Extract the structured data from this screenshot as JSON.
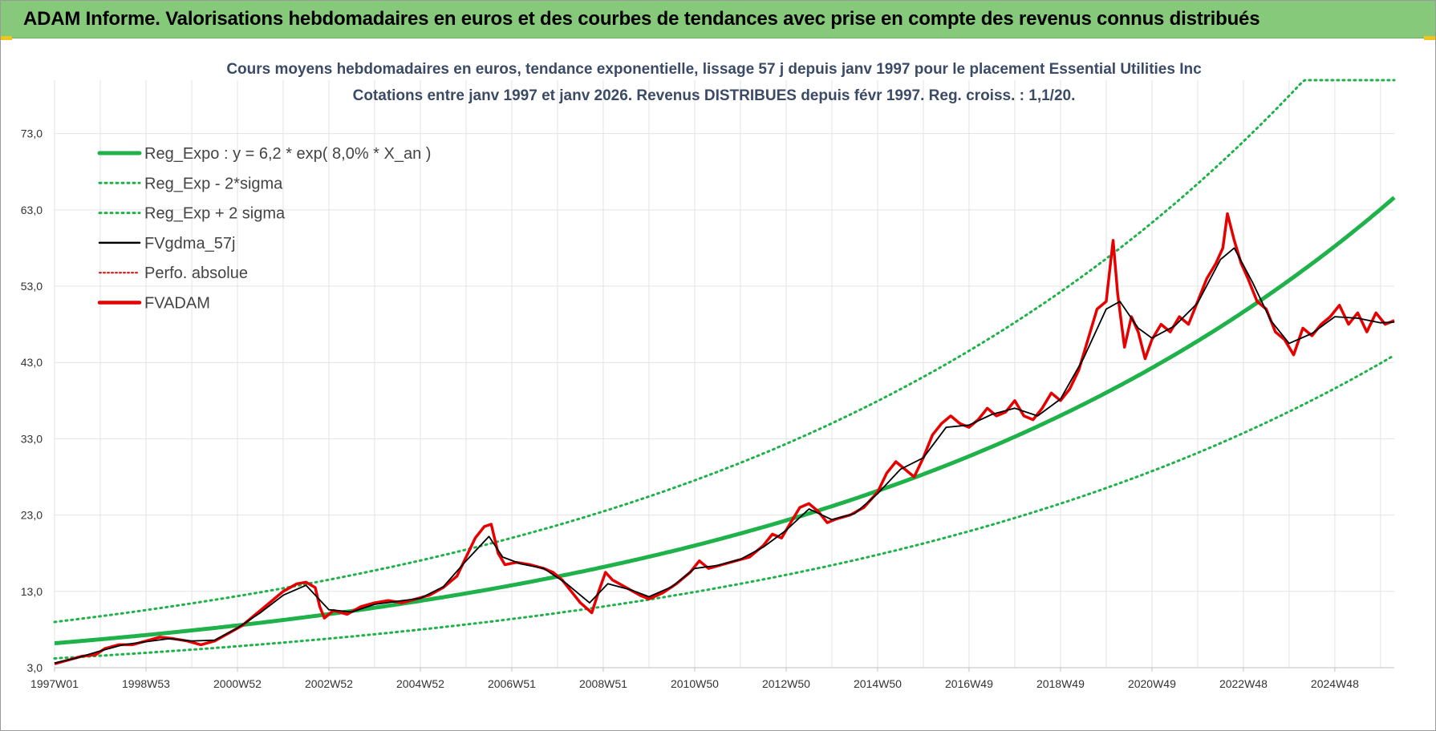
{
  "banner": {
    "title": "ADAM Informe. Valorisations hebdomadaires en euros et des courbes de tendances avec prise en compte des revenus connus distribués"
  },
  "colors": {
    "banner": "#86c97a",
    "trend": "#1fb14a",
    "bands": "#1fb14a",
    "smooth": "#000000",
    "fvadam": "#e60000",
    "perfo": "#e60000"
  },
  "chart_data": {
    "type": "line",
    "title_line1": "Cours moyens hebdomadaires en euros, tendance exponentielle, lissage 57 j depuis janv 1997 pour le placement Essential Utilities Inc",
    "title_line2": "Cotations entre janv 1997 et janv 2026. Revenus DISTRIBUES depuis févr 1997. Reg. croiss. : 1,1/20.",
    "y_ticks": [
      "3,0",
      "13,0",
      "23,0",
      "33,0",
      "43,0",
      "53,0",
      "63,0",
      "73,0"
    ],
    "ylim": [
      3,
      80
    ],
    "x_ticks": [
      {
        "label": "1997W01",
        "t": 1997.0
      },
      {
        "label": "1998W53",
        "t": 1999.0
      },
      {
        "label": "2000W52",
        "t": 2001.0
      },
      {
        "label": "2002W52",
        "t": 2003.0
      },
      {
        "label": "2004W52",
        "t": 2005.0
      },
      {
        "label": "2006W51",
        "t": 2007.0
      },
      {
        "label": "2008W51",
        "t": 2009.0
      },
      {
        "label": "2010W50",
        "t": 2011.0
      },
      {
        "label": "2012W50",
        "t": 2013.0
      },
      {
        "label": "2014W50",
        "t": 2015.0
      },
      {
        "label": "2016W49",
        "t": 2017.0
      },
      {
        "label": "2018W49",
        "t": 2019.0
      },
      {
        "label": "2020W49",
        "t": 2021.0
      },
      {
        "label": "2022W48",
        "t": 2023.0
      },
      {
        "label": "2024W48",
        "t": 2025.0
      }
    ],
    "xlim": [
      1997.0,
      2026.3
    ],
    "grid": true,
    "legend": {
      "placement": "top-left",
      "entries": [
        {
          "label": "Reg_Expo : y = 6,2 * exp( 8,0% *  X_an )",
          "style": "solid-thick",
          "color": "#1fb14a"
        },
        {
          "label": "Reg_Exp - 2*sigma",
          "style": "dotted",
          "color": "#1fb14a"
        },
        {
          "label": "Reg_Exp + 2 sigma",
          "style": "dotted",
          "color": "#1fb14a"
        },
        {
          "label": "FVgdma_57j",
          "style": "solid",
          "color": "#000000"
        },
        {
          "label": "Perfo. absolue",
          "style": "dotted-thin",
          "color": "#e60000"
        },
        {
          "label": "FVADAM",
          "style": "solid-thick",
          "color": "#e60000"
        }
      ]
    },
    "trend": {
      "a": 6.2,
      "rate": 0.08,
      "lower_factor": 0.68,
      "upper_factor": 1.45,
      "upper_cap": 80
    },
    "series": [
      {
        "name": "FVADAM",
        "points": [
          [
            1997.0,
            3.5
          ],
          [
            1997.3,
            4.0
          ],
          [
            1997.6,
            4.5
          ],
          [
            1997.9,
            4.7
          ],
          [
            1998.1,
            5.5
          ],
          [
            1998.4,
            6.0
          ],
          [
            1998.7,
            6.0
          ],
          [
            1999.0,
            6.5
          ],
          [
            1999.3,
            7.0
          ],
          [
            1999.6,
            6.8
          ],
          [
            1999.9,
            6.5
          ],
          [
            2000.2,
            6.0
          ],
          [
            2000.5,
            6.5
          ],
          [
            2000.8,
            7.5
          ],
          [
            2001.1,
            8.5
          ],
          [
            2001.4,
            10.0
          ],
          [
            2001.7,
            11.5
          ],
          [
            2002.0,
            13.0
          ],
          [
            2002.3,
            14.0
          ],
          [
            2002.5,
            14.2
          ],
          [
            2002.7,
            13.5
          ],
          [
            2002.8,
            11.0
          ],
          [
            2002.9,
            9.5
          ],
          [
            2003.1,
            10.5
          ],
          [
            2003.4,
            10.0
          ],
          [
            2003.7,
            11.0
          ],
          [
            2004.0,
            11.5
          ],
          [
            2004.3,
            11.8
          ],
          [
            2004.6,
            11.5
          ],
          [
            2004.9,
            12.0
          ],
          [
            2005.2,
            12.5
          ],
          [
            2005.5,
            13.5
          ],
          [
            2005.8,
            15.0
          ],
          [
            2006.0,
            17.5
          ],
          [
            2006.2,
            20.0
          ],
          [
            2006.4,
            21.5
          ],
          [
            2006.55,
            21.8
          ],
          [
            2006.7,
            18.0
          ],
          [
            2006.85,
            16.5
          ],
          [
            2007.1,
            16.8
          ],
          [
            2007.4,
            16.5
          ],
          [
            2007.7,
            16.0
          ],
          [
            2007.9,
            15.5
          ],
          [
            2008.1,
            14.5
          ],
          [
            2008.3,
            13.0
          ],
          [
            2008.5,
            11.5
          ],
          [
            2008.75,
            10.2
          ],
          [
            2008.9,
            13.0
          ],
          [
            2009.05,
            15.5
          ],
          [
            2009.2,
            14.5
          ],
          [
            2009.5,
            13.5
          ],
          [
            2009.8,
            12.5
          ],
          [
            2010.0,
            12.0
          ],
          [
            2010.3,
            12.8
          ],
          [
            2010.6,
            14.0
          ],
          [
            2010.9,
            15.5
          ],
          [
            2011.1,
            17.0
          ],
          [
            2011.3,
            16.0
          ],
          [
            2011.6,
            16.5
          ],
          [
            2011.9,
            17.0
          ],
          [
            2012.2,
            17.5
          ],
          [
            2012.5,
            19.0
          ],
          [
            2012.7,
            20.5
          ],
          [
            2012.9,
            20.0
          ],
          [
            2013.1,
            22.0
          ],
          [
            2013.3,
            24.0
          ],
          [
            2013.5,
            24.5
          ],
          [
            2013.7,
            23.5
          ],
          [
            2013.9,
            22.0
          ],
          [
            2014.1,
            22.5
          ],
          [
            2014.4,
            23.0
          ],
          [
            2014.7,
            24.0
          ],
          [
            2015.0,
            26.0
          ],
          [
            2015.2,
            28.5
          ],
          [
            2015.4,
            30.0
          ],
          [
            2015.6,
            29.0
          ],
          [
            2015.8,
            28.0
          ],
          [
            2016.0,
            30.5
          ],
          [
            2016.2,
            33.5
          ],
          [
            2016.4,
            35.0
          ],
          [
            2016.6,
            36.0
          ],
          [
            2016.8,
            35.0
          ],
          [
            2017.0,
            34.5
          ],
          [
            2017.2,
            35.5
          ],
          [
            2017.4,
            37.0
          ],
          [
            2017.6,
            36.0
          ],
          [
            2017.8,
            36.5
          ],
          [
            2018.0,
            38.0
          ],
          [
            2018.2,
            36.0
          ],
          [
            2018.4,
            35.5
          ],
          [
            2018.6,
            37.0
          ],
          [
            2018.8,
            39.0
          ],
          [
            2019.0,
            38.0
          ],
          [
            2019.2,
            39.5
          ],
          [
            2019.4,
            42.0
          ],
          [
            2019.6,
            46.0
          ],
          [
            2019.8,
            50.0
          ],
          [
            2020.0,
            51.0
          ],
          [
            2020.15,
            59.0
          ],
          [
            2020.25,
            52.0
          ],
          [
            2020.4,
            45.0
          ],
          [
            2020.55,
            49.0
          ],
          [
            2020.7,
            47.0
          ],
          [
            2020.85,
            43.5
          ],
          [
            2021.0,
            46.0
          ],
          [
            2021.2,
            48.0
          ],
          [
            2021.4,
            47.0
          ],
          [
            2021.6,
            49.0
          ],
          [
            2021.8,
            48.0
          ],
          [
            2022.0,
            51.0
          ],
          [
            2022.2,
            54.0
          ],
          [
            2022.4,
            56.0
          ],
          [
            2022.55,
            58.0
          ],
          [
            2022.65,
            62.5
          ],
          [
            2022.8,
            59.0
          ],
          [
            2022.95,
            56.0
          ],
          [
            2023.1,
            54.0
          ],
          [
            2023.3,
            51.0
          ],
          [
            2023.5,
            50.0
          ],
          [
            2023.7,
            47.0
          ],
          [
            2023.9,
            46.0
          ],
          [
            2024.1,
            44.0
          ],
          [
            2024.3,
            47.5
          ],
          [
            2024.5,
            46.5
          ],
          [
            2024.7,
            48.0
          ],
          [
            2024.9,
            49.0
          ],
          [
            2025.1,
            50.5
          ],
          [
            2025.3,
            48.0
          ],
          [
            2025.5,
            49.5
          ],
          [
            2025.7,
            47.0
          ],
          [
            2025.9,
            49.5
          ],
          [
            2026.1,
            48.0
          ],
          [
            2026.3,
            48.5
          ]
        ]
      },
      {
        "name": "FVgdma_57j",
        "points": [
          [
            1997.0,
            3.6
          ],
          [
            1997.5,
            4.3
          ],
          [
            1998.0,
            5.2
          ],
          [
            1998.5,
            6.0
          ],
          [
            1999.0,
            6.4
          ],
          [
            1999.5,
            6.8
          ],
          [
            2000.0,
            6.5
          ],
          [
            2000.5,
            6.6
          ],
          [
            2001.0,
            8.2
          ],
          [
            2001.5,
            10.2
          ],
          [
            2002.0,
            12.5
          ],
          [
            2002.5,
            13.8
          ],
          [
            2003.0,
            10.6
          ],
          [
            2003.5,
            10.3
          ],
          [
            2004.0,
            11.3
          ],
          [
            2004.5,
            11.7
          ],
          [
            2005.0,
            12.1
          ],
          [
            2005.5,
            13.6
          ],
          [
            2006.0,
            17.0
          ],
          [
            2006.5,
            20.2
          ],
          [
            2006.8,
            17.5
          ],
          [
            2007.2,
            16.6
          ],
          [
            2007.7,
            16.0
          ],
          [
            2008.2,
            14.0
          ],
          [
            2008.7,
            11.5
          ],
          [
            2009.1,
            14.0
          ],
          [
            2009.6,
            13.2
          ],
          [
            2010.0,
            12.3
          ],
          [
            2010.5,
            13.6
          ],
          [
            2011.0,
            16.0
          ],
          [
            2011.5,
            16.4
          ],
          [
            2012.0,
            17.2
          ],
          [
            2012.5,
            18.8
          ],
          [
            2013.0,
            21.0
          ],
          [
            2013.5,
            23.8
          ],
          [
            2014.0,
            22.4
          ],
          [
            2014.5,
            23.2
          ],
          [
            2015.0,
            25.8
          ],
          [
            2015.5,
            29.0
          ],
          [
            2016.0,
            30.5
          ],
          [
            2016.5,
            34.5
          ],
          [
            2017.0,
            34.8
          ],
          [
            2017.5,
            36.2
          ],
          [
            2018.0,
            37.0
          ],
          [
            2018.5,
            36.0
          ],
          [
            2019.0,
            38.2
          ],
          [
            2019.5,
            43.5
          ],
          [
            2020.0,
            50.0
          ],
          [
            2020.3,
            51.0
          ],
          [
            2020.7,
            47.5
          ],
          [
            2021.0,
            46.2
          ],
          [
            2021.5,
            47.8
          ],
          [
            2022.0,
            50.8
          ],
          [
            2022.5,
            56.5
          ],
          [
            2022.8,
            58.0
          ],
          [
            2023.2,
            53.5
          ],
          [
            2023.6,
            48.5
          ],
          [
            2024.0,
            45.5
          ],
          [
            2024.5,
            46.8
          ],
          [
            2025.0,
            49.0
          ],
          [
            2025.5,
            48.8
          ],
          [
            2026.0,
            48.2
          ],
          [
            2026.3,
            48.3
          ]
        ]
      }
    ]
  }
}
